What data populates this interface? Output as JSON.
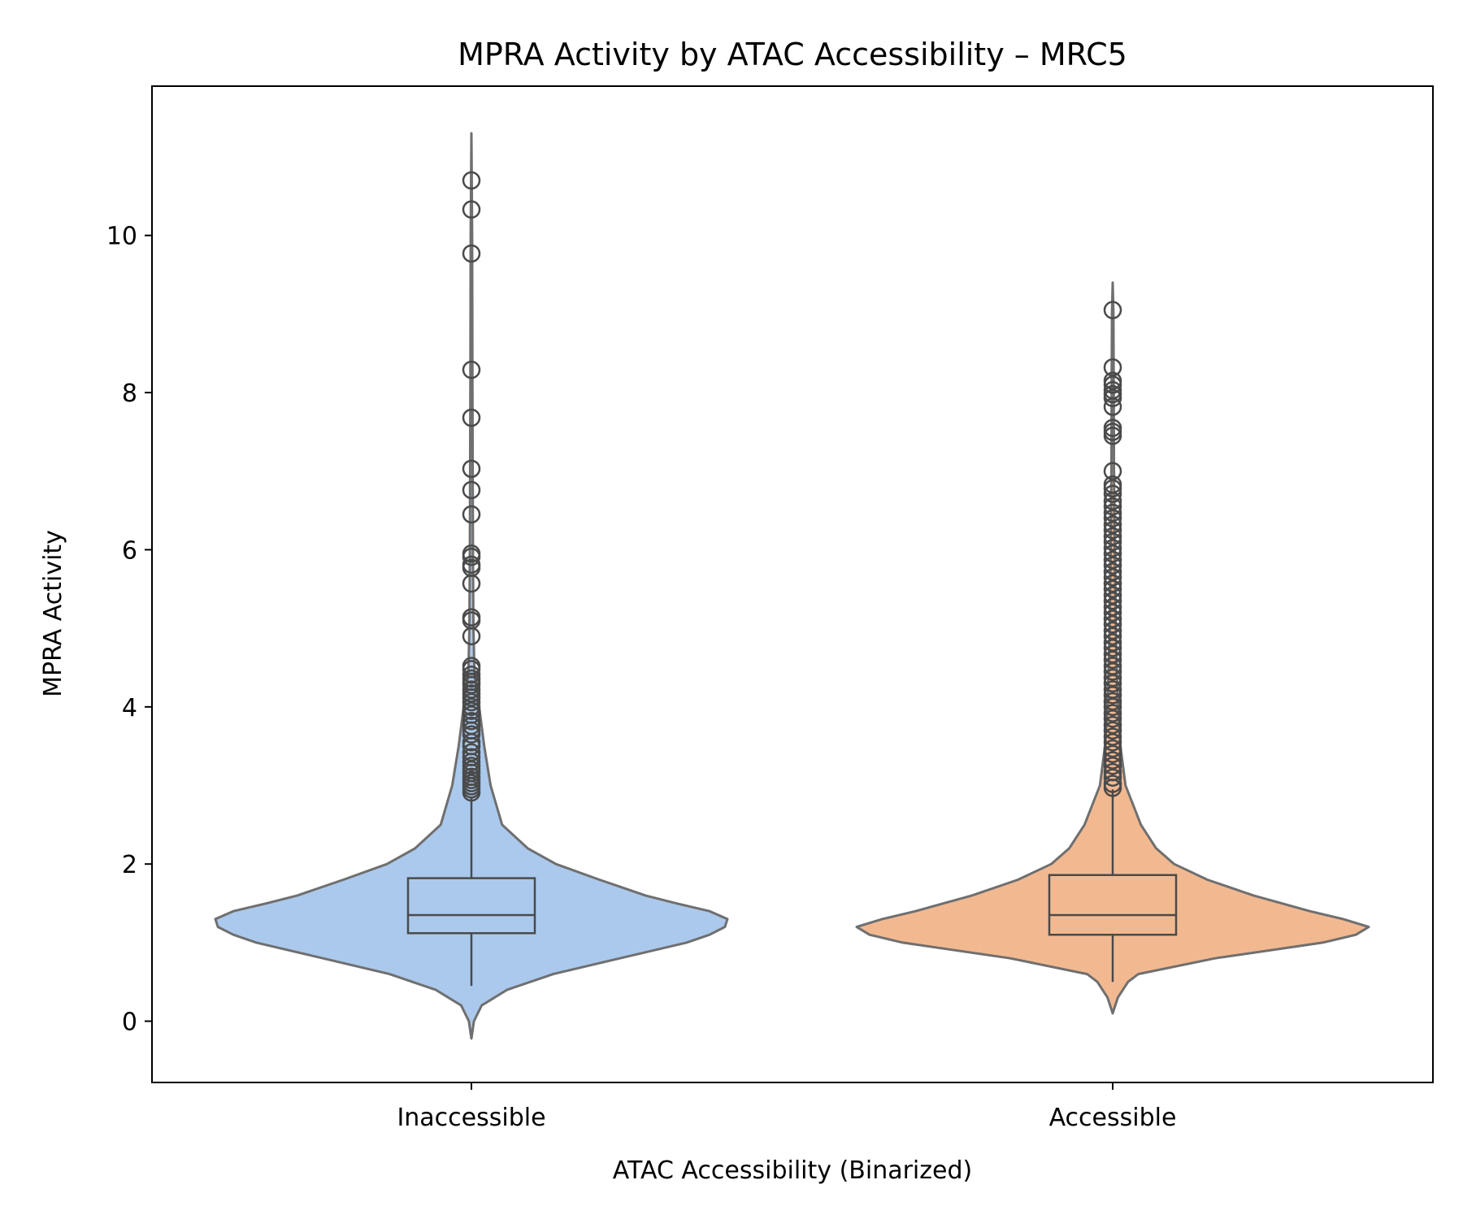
{
  "chart_data": {
    "type": "violin",
    "title": "MPRA Activity by ATAC Accessibility – MRC5",
    "xlabel": "ATAC Accessibility (Binarized)",
    "ylabel": "MPRA Activity",
    "ylim": [
      -0.78,
      11.9
    ],
    "yticks": [
      0,
      2,
      4,
      6,
      8,
      10
    ],
    "grid": false,
    "categories": [
      "Inaccessible",
      "Accessible"
    ],
    "series": [
      {
        "category": "Inaccessible",
        "color": "#abc9ec",
        "violin_range": [
          -0.22,
          11.3
        ],
        "box": {
          "whisker_low": 0.45,
          "q1": 1.12,
          "median": 1.35,
          "q3": 1.82,
          "whisker_high": 2.85
        },
        "density": [
          [
            -0.22,
            0.0
          ],
          [
            0.0,
            0.01
          ],
          [
            0.2,
            0.04
          ],
          [
            0.4,
            0.14
          ],
          [
            0.6,
            0.32
          ],
          [
            0.8,
            0.58
          ],
          [
            1.0,
            0.84
          ],
          [
            1.1,
            0.93
          ],
          [
            1.2,
            0.99
          ],
          [
            1.3,
            1.0
          ],
          [
            1.4,
            0.93
          ],
          [
            1.5,
            0.8
          ],
          [
            1.6,
            0.68
          ],
          [
            1.8,
            0.5
          ],
          [
            2.0,
            0.33
          ],
          [
            2.2,
            0.22
          ],
          [
            2.5,
            0.12
          ],
          [
            3.0,
            0.075
          ],
          [
            3.5,
            0.05
          ],
          [
            4.0,
            0.03
          ],
          [
            4.4,
            0.012
          ],
          [
            5.0,
            0.008
          ],
          [
            6.0,
            0.006
          ],
          [
            8.0,
            0.004
          ],
          [
            10.0,
            0.003
          ],
          [
            11.3,
            0.0
          ]
        ],
        "outliers": [
          10.7,
          10.33,
          9.77,
          8.29,
          7.68,
          7.03,
          6.76,
          6.45,
          5.95,
          5.91,
          5.81,
          5.77,
          5.57,
          5.14,
          5.1,
          4.9,
          4.52,
          4.48,
          4.41,
          4.36,
          4.32,
          4.28,
          4.22,
          4.17,
          4.12,
          4.06,
          4.0,
          3.95,
          3.9,
          3.82,
          3.76,
          3.7,
          3.65,
          3.55,
          3.5,
          3.42,
          3.36,
          3.3,
          3.25,
          3.2,
          3.16,
          3.11,
          3.07,
          3.03,
          2.99,
          2.95,
          2.91
        ]
      },
      {
        "category": "Accessible",
        "color": "#f2b991",
        "violin_range": [
          0.1,
          9.4
        ],
        "box": {
          "whisker_low": 0.5,
          "q1": 1.1,
          "median": 1.35,
          "q3": 1.86,
          "whisker_high": 2.95
        },
        "density": [
          [
            0.1,
            0.0
          ],
          [
            0.3,
            0.02
          ],
          [
            0.5,
            0.06
          ],
          [
            0.6,
            0.1
          ],
          [
            0.8,
            0.4
          ],
          [
            1.0,
            0.82
          ],
          [
            1.1,
            0.95
          ],
          [
            1.2,
            1.0
          ],
          [
            1.3,
            0.9
          ],
          [
            1.4,
            0.77
          ],
          [
            1.6,
            0.55
          ],
          [
            1.8,
            0.37
          ],
          [
            2.0,
            0.24
          ],
          [
            2.2,
            0.17
          ],
          [
            2.5,
            0.11
          ],
          [
            3.0,
            0.05
          ],
          [
            3.5,
            0.03
          ],
          [
            4.0,
            0.02
          ],
          [
            5.0,
            0.012
          ],
          [
            6.0,
            0.008
          ],
          [
            7.0,
            0.005
          ],
          [
            8.0,
            0.004
          ],
          [
            9.0,
            0.003
          ],
          [
            9.4,
            0.0
          ]
        ],
        "outliers": [
          9.05,
          8.32,
          8.15,
          8.1,
          8.03,
          7.98,
          7.93,
          7.82,
          7.55,
          7.5,
          7.45,
          7.0,
          6.83,
          6.78,
          6.71,
          6.62,
          6.55,
          6.47,
          6.4,
          6.32,
          6.25,
          6.17,
          6.1,
          6.02,
          5.95,
          5.87,
          5.8,
          5.72,
          5.65,
          5.57,
          5.5,
          5.42,
          5.35,
          5.27,
          5.2,
          5.12,
          5.05,
          4.97,
          4.9,
          4.82,
          4.75,
          4.67,
          4.6,
          4.52,
          4.45,
          4.37,
          4.3,
          4.22,
          4.15,
          4.07,
          4.0,
          3.92,
          3.85,
          3.77,
          3.7,
          3.62,
          3.55,
          3.47,
          3.4,
          3.32,
          3.25,
          3.17,
          3.1,
          3.02,
          2.97
        ]
      }
    ]
  }
}
